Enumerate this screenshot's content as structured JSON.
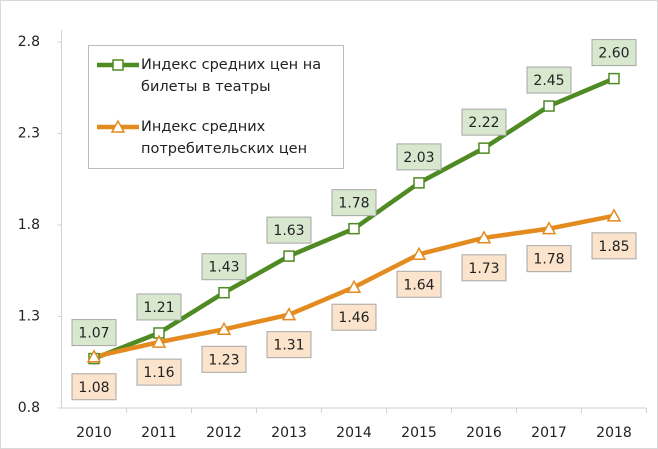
{
  "chart_data": {
    "type": "line",
    "categories": [
      "2010",
      "2011",
      "2012",
      "2013",
      "2014",
      "2015",
      "2016",
      "2017",
      "2018"
    ],
    "series": [
      {
        "name": "Индекс средних цен на билеты в театры",
        "color": "#4f8a23",
        "marker": "square",
        "values": [
          1.07,
          1.21,
          1.43,
          1.63,
          1.78,
          2.03,
          2.22,
          2.45,
          2.6
        ],
        "value_labels": [
          "1.07",
          "1.21",
          "1.43",
          "1.63",
          "1.78",
          "2.03",
          "2.22",
          "2.45",
          "2.60"
        ]
      },
      {
        "name": "Индекс средних потребительских цен",
        "color": "#e38b1f",
        "marker": "triangle",
        "values": [
          1.08,
          1.16,
          1.23,
          1.31,
          1.46,
          1.64,
          1.73,
          1.78,
          1.85
        ],
        "value_labels": [
          "1.08",
          "1.16",
          "1.23",
          "1.31",
          "1.46",
          "1.64",
          "1.73",
          "1.78",
          "1.85"
        ]
      }
    ],
    "ylim": [
      0.8,
      2.8
    ],
    "yticks": [
      0.8,
      1.3,
      1.8,
      2.3,
      2.8
    ],
    "grid": false,
    "legend": "top-left"
  }
}
